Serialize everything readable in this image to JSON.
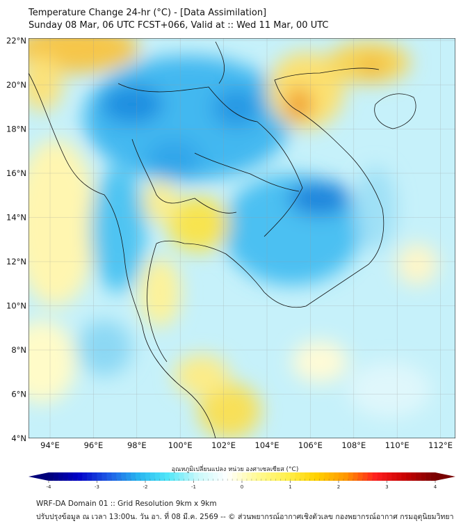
{
  "header": {
    "title": "Temperature Change 24-hr (°C) - [Data Assimilation]",
    "subtitle": "Sunday 08 Mar, 06 UTC FCST+066, Valid at :: Wed 11 Mar, 00 UTC"
  },
  "map": {
    "lat_labels": [
      "22°N",
      "20°N",
      "18°N",
      "16°N",
      "14°N",
      "12°N",
      "10°N",
      "8°N",
      "6°N",
      "4°N"
    ],
    "lat_values": [
      22,
      20,
      18,
      16,
      14,
      12,
      10,
      8,
      6,
      4
    ],
    "lon_labels": [
      "94°E",
      "96°E",
      "98°E",
      "100°E",
      "102°E",
      "104°E",
      "106°E",
      "108°E",
      "110°E",
      "112°E"
    ],
    "lon_values": [
      94,
      96,
      98,
      100,
      102,
      104,
      106,
      108,
      110,
      112
    ],
    "extent": {
      "lon": [
        93,
        112.7
      ],
      "lat": [
        4,
        22.1
      ]
    }
  },
  "colorbar": {
    "label": "อุณหภูมิเปลี่ยนแปลง หน่วย องศาเซลเซียส (°C)",
    "ticks": [
      "-4",
      "-3",
      "-2",
      "-1",
      "0",
      "1",
      "2",
      "3",
      "4"
    ],
    "tick_values": [
      -4,
      -3,
      -2,
      -1,
      0,
      1,
      2,
      3,
      4
    ],
    "colors": [
      "#00007a",
      "#0000c8",
      "#1e5ae6",
      "#28b4f0",
      "#50e6f8",
      "#c8f8fa",
      "#ffffff",
      "#fffa96",
      "#fff050",
      "#ffd200",
      "#ff9600",
      "#ff1e1e",
      "#c80000",
      "#780000"
    ]
  },
  "footer": {
    "line1": "WRF-DA Domain 01 :: Grid Resolution 9km x 9km",
    "line2": "ปรับปรุงข้อมูล ณ เวลา 13:00น. วัน อา. ที่ 08 มี.ค. 2569 -- © ส่วนพยากรณ์อากาศเชิงตัวเลข กองพยากรณ์อากาศ กรมอุตุนิยมวิทยา"
  }
}
